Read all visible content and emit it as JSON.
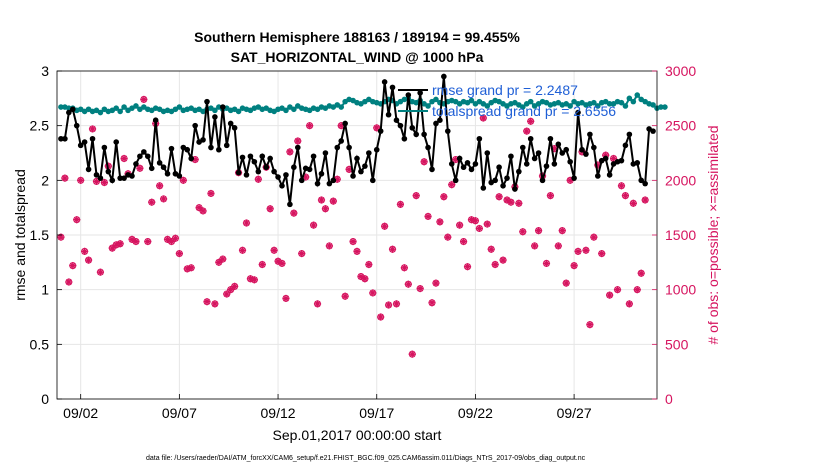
{
  "chart_data": {
    "type": "line",
    "title": "Southern Hemisphere 188163 / 189194 = 99.455%",
    "subtitle": "SAT_HORIZONTAL_WIND @ 1000 hPa",
    "xlabel": "Sep.01,2017 00:00:00 start",
    "ylabel_left": "rmse and totalspread",
    "ylabel_right": "# of obs: o=possible; ×=assimilated",
    "xlim": [
      0.8,
      31.2
    ],
    "ylim_left": [
      0,
      3
    ],
    "ylim_right": [
      0,
      3000
    ],
    "x_ticks": [
      {
        "value": 2,
        "label": "09/02"
      },
      {
        "value": 7,
        "label": "09/07"
      },
      {
        "value": 12,
        "label": "09/12"
      },
      {
        "value": 17,
        "label": "09/17"
      },
      {
        "value": 22,
        "label": "09/22"
      },
      {
        "value": 27,
        "label": "09/27"
      }
    ],
    "y_ticks_left": [
      "0",
      "0.5",
      "1",
      "1.5",
      "2",
      "2.5",
      "3"
    ],
    "y_ticks_right": [
      "0",
      "500",
      "1000",
      "1500",
      "2000",
      "2500",
      "3000"
    ],
    "grid": true,
    "legend_placement": "top-right",
    "legend": [
      {
        "label": "rmse grand pr = 2.2487",
        "color": "#000000"
      },
      {
        "label": "totalspread grand pr = 2.6556",
        "color": "#008080"
      }
    ],
    "footnote": "data file: /Users/raeder/DAI/ATM_forcXX/CAM6_setup/f.e21.FHIST_BGC.f09_025.CAM6assim.011/Diags_NTrS_2017-09/obs_diag_output.nc",
    "colors": {
      "rmse": "#000000",
      "spread": "#008080",
      "obs": "#d6145f",
      "legend_text": "#1f5fd6",
      "grid": "#e6e6e6"
    },
    "series": [
      {
        "name": "rmse",
        "axis": "left",
        "color": "#000000",
        "values": [
          2.38,
          2.38,
          2.62,
          2.65,
          2.5,
          2.32,
          2.35,
          2.1,
          2.38,
          2.05,
          2.02,
          2.3,
          2.08,
          2.0,
          2.35,
          2.02,
          2.02,
          2.05,
          2.04,
          2.15,
          2.22,
          2.26,
          2.22,
          2.11,
          2.55,
          2.16,
          2.12,
          2.06,
          2.29,
          2.06,
          2.04,
          2.3,
          2.28,
          2.2,
          2.5,
          2.35,
          2.37,
          2.72,
          2.3,
          2.58,
          2.28,
          2.67,
          2.32,
          2.52,
          2.48,
          2.07,
          2.21,
          2.05,
          2.22,
          2.17,
          2.08,
          2.22,
          2.12,
          2.2,
          2.08,
          2.03,
          1.95,
          2.05,
          1.78,
          2.12,
          2.3,
          2.0,
          2.11,
          2.1,
          2.22,
          1.97,
          2.06,
          2.25,
          1.97,
          2.0,
          2.3,
          2.36,
          2.52,
          2.3,
          2.04,
          2.2,
          2.08,
          2.13,
          2.25,
          2.0,
          2.28,
          2.45,
          2.9,
          2.6,
          2.85,
          2.55,
          2.5,
          2.38,
          2.78,
          2.48,
          2.42,
          2.8,
          2.42,
          2.3,
          2.1,
          2.52,
          2.55,
          2.95,
          2.45,
          2.15,
          2.0,
          2.2,
          2.12,
          2.16,
          2.1,
          2.15,
          2.38,
          1.93,
          2.25,
          1.98,
          2.0,
          2.12,
          1.95,
          2.02,
          2.22,
          1.92,
          2.08,
          2.3,
          2.15,
          2.38,
          2.2,
          2.25,
          2.0,
          2.13,
          2.38,
          2.15,
          2.33,
          2.25,
          2.28,
          2.17,
          2.02,
          2.62,
          2.28,
          2.24,
          2.42,
          2.3,
          2.04,
          2.18,
          2.2,
          2.05,
          2.15,
          2.17,
          2.18,
          2.32,
          2.42,
          2.15,
          2.16,
          2.0,
          1.97,
          2.47,
          2.45
        ]
      },
      {
        "name": "totalspread",
        "axis": "left",
        "color": "#008080",
        "values": [
          2.67,
          2.67,
          2.66,
          2.66,
          2.64,
          2.65,
          2.63,
          2.65,
          2.63,
          2.64,
          2.62,
          2.65,
          2.63,
          2.64,
          2.66,
          2.63,
          2.67,
          2.64,
          2.66,
          2.68,
          2.65,
          2.67,
          2.65,
          2.64,
          2.66,
          2.65,
          2.63,
          2.64,
          2.63,
          2.65,
          2.67,
          2.64,
          2.65,
          2.66,
          2.64,
          2.65,
          2.63,
          2.65,
          2.66,
          2.64,
          2.67,
          2.65,
          2.66,
          2.64,
          2.65,
          2.63,
          2.66,
          2.65,
          2.64,
          2.66,
          2.67,
          2.65,
          2.66,
          2.64,
          2.63,
          2.65,
          2.66,
          2.64,
          2.67,
          2.65,
          2.68,
          2.66,
          2.65,
          2.64,
          2.66,
          2.65,
          2.67,
          2.66,
          2.68,
          2.67,
          2.69,
          2.67,
          2.72,
          2.74,
          2.73,
          2.71,
          2.7,
          2.72,
          2.74,
          2.72,
          2.71,
          2.7,
          2.72,
          2.74,
          2.73,
          2.7,
          2.72,
          2.74,
          2.75,
          2.72,
          2.71,
          2.73,
          2.7,
          2.68,
          2.72,
          2.74,
          2.71,
          2.7,
          2.72,
          2.73,
          2.72,
          2.7,
          2.72,
          2.71,
          2.73,
          2.7,
          2.72,
          2.7,
          2.68,
          2.71,
          2.73,
          2.72,
          2.7,
          2.68,
          2.7,
          2.71,
          2.69,
          2.67,
          2.7,
          2.72,
          2.68,
          2.7,
          2.72,
          2.71,
          2.69,
          2.7,
          2.71,
          2.69,
          2.7,
          2.68,
          2.72,
          2.7,
          2.71,
          2.69,
          2.7,
          2.71,
          2.68,
          2.71,
          2.72,
          2.7,
          2.7,
          2.72,
          2.71,
          2.68,
          2.75,
          2.72,
          2.78,
          2.74,
          2.72,
          2.7,
          2.69,
          2.66,
          2.67,
          2.67
        ]
      },
      {
        "name": "possible",
        "axis": "right",
        "color": "#d6145f",
        "values": [
          1480,
          2020,
          1070,
          1220,
          1640,
          2000,
          1350,
          1270,
          2470,
          1990,
          1160,
          1980,
          2130,
          1380,
          1410,
          1420,
          2200,
          2060,
          1460,
          1440,
          2110,
          2740,
          1440,
          1800,
          2520,
          1950,
          1830,
          1460,
          1440,
          1470,
          1330,
          2000,
          1190,
          1200,
          2190,
          1750,
          1720,
          890,
          1880,
          870,
          1250,
          1280,
          960,
          1000,
          1030,
          2070,
          1360,
          1610,
          1100,
          1090,
          2010,
          1230,
          2120,
          1740,
          1360,
          1260,
          1240,
          920,
          2260,
          1700,
          2360,
          1330,
          2030,
          2500,
          1590,
          870,
          1820,
          1740,
          1400,
          1810,
          2010,
          2500,
          940,
          2100,
          1440,
          1350,
          1120,
          1100,
          1230,
          970,
          2480,
          750,
          1580,
          860,
          1370,
          870,
          1780,
          1200,
          1050,
          410,
          1860,
          1010,
          2170,
          1670,
          880,
          1060,
          1620,
          1850,
          1480,
          1960,
          2190,
          1590,
          1440,
          1210,
          1640,
          1630,
          1560,
          2570,
          1600,
          1370,
          1230,
          1850,
          1270,
          1820,
          1800,
          1940,
          1790,
          1530,
          2450,
          2540,
          1400,
          1540,
          2040,
          1240,
          1860,
          2290,
          1400,
          1540,
          1060,
          2000,
          1220,
          1350,
          2260,
          1360,
          680,
          1480,
          2140,
          1330,
          2230,
          950,
          2200,
          1000,
          1950,
          1860,
          870,
          1790,
          1000,
          1150,
          1820
        ]
      },
      {
        "name": "assimilated",
        "axis": "right",
        "color": "#d6145f",
        "values": [
          1480,
          2020,
          1070,
          1220,
          1640,
          2000,
          1350,
          1270,
          2470,
          1990,
          1160,
          1980,
          2130,
          1380,
          1410,
          1420,
          2200,
          2060,
          1460,
          1440,
          2110,
          2740,
          1440,
          1800,
          2520,
          1950,
          1830,
          1460,
          1440,
          1470,
          1330,
          2000,
          1190,
          1200,
          2190,
          1750,
          1720,
          890,
          1880,
          870,
          1250,
          1280,
          960,
          1000,
          1030,
          2070,
          1360,
          1610,
          1100,
          1090,
          2010,
          1230,
          2120,
          1740,
          1360,
          1260,
          1240,
          920,
          2260,
          1700,
          2360,
          1330,
          2030,
          2500,
          1590,
          870,
          1820,
          1740,
          1400,
          1810,
          2010,
          2500,
          940,
          2100,
          1440,
          1350,
          1120,
          1100,
          1230,
          970,
          2480,
          750,
          1580,
          860,
          1370,
          870,
          1780,
          1200,
          1050,
          410,
          1860,
          1010,
          2170,
          1670,
          880,
          1060,
          1620,
          1850,
          1480,
          1960,
          2190,
          1590,
          1440,
          1210,
          1640,
          1630,
          1560,
          2570,
          1600,
          1370,
          1230,
          1850,
          1270,
          1820,
          1800,
          1940,
          1790,
          1530,
          2450,
          2540,
          1400,
          1540,
          2040,
          1240,
          1860,
          2290,
          1400,
          1540,
          1060,
          2000,
          1220,
          1350,
          2260,
          1360,
          680,
          1480,
          2140,
          1330,
          2230,
          950,
          2200,
          1000,
          1950,
          1860,
          870,
          1790,
          1000,
          1150,
          1820
        ]
      }
    ]
  }
}
